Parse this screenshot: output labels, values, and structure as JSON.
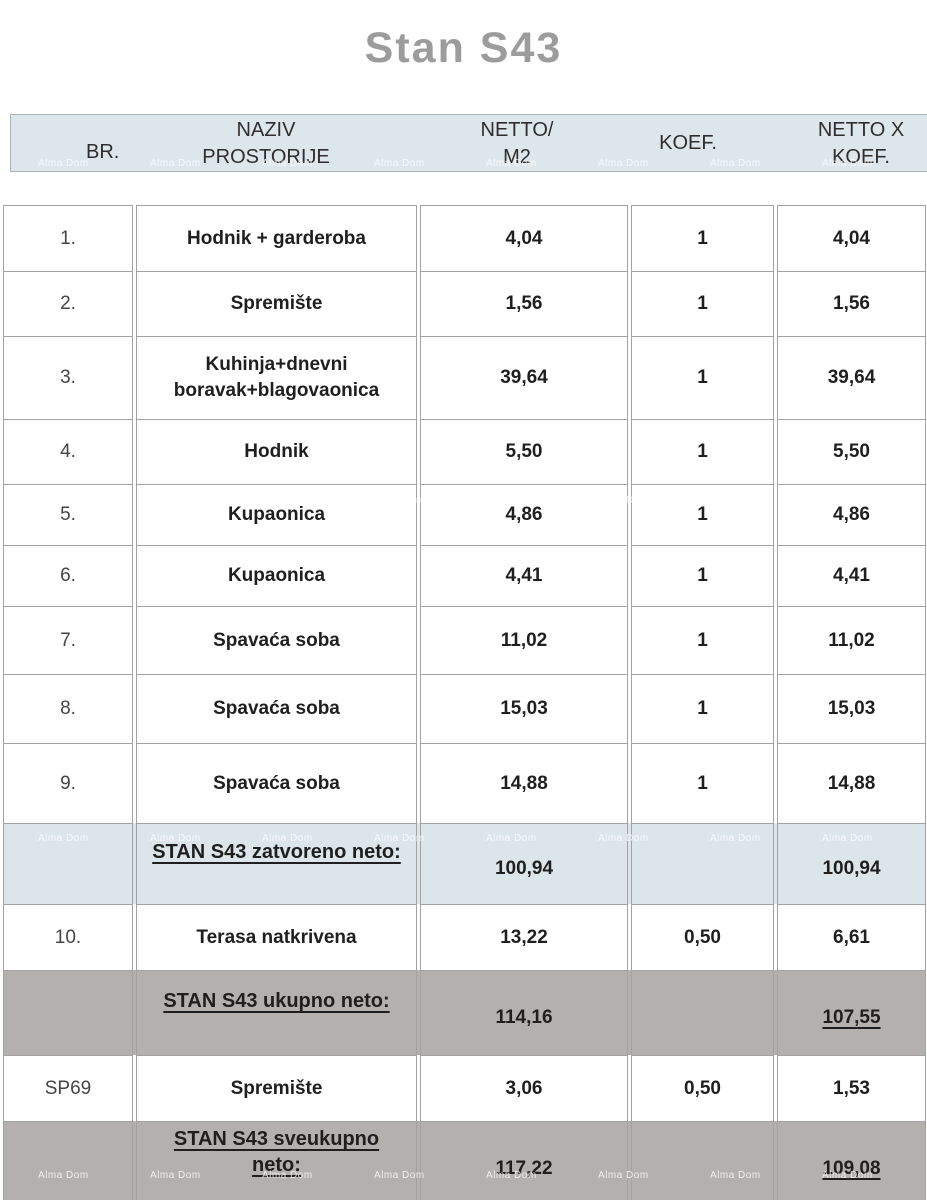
{
  "title": "Stan S43",
  "watermark": {
    "text": "Alma Dom"
  },
  "header": {
    "br": "BR.",
    "name_line1": "NAZIV",
    "name_line2": "PROSTORIJE",
    "netto_line1": "NETTO/",
    "netto_line2": "M2",
    "koef": "KOEF.",
    "nettokoef_line1": "NETTO X",
    "nettokoef_line2": "KOEF."
  },
  "rows": [
    {
      "br": "1.",
      "name": "Hodnik + garderoba",
      "netto": "4,04",
      "koef": "1",
      "total": "4,04"
    },
    {
      "br": "2.",
      "name": "Spremište",
      "netto": "1,56",
      "koef": "1",
      "total": "1,56"
    },
    {
      "br": "3.",
      "name": "Kuhinja+dnevni boravak+blagovaonica",
      "netto": "39,64",
      "koef": "1",
      "total": "39,64"
    },
    {
      "br": "4.",
      "name": "Hodnik",
      "netto": "5,50",
      "koef": "1",
      "total": "5,50"
    },
    {
      "br": "5.",
      "name": "Kupaonica",
      "netto": "4,86",
      "koef": "1",
      "total": "4,86"
    },
    {
      "br": "6.",
      "name": "Kupaonica",
      "netto": "4,41",
      "koef": "1",
      "total": "4,41"
    },
    {
      "br": "7.",
      "name": "Spavaća soba",
      "netto": "11,02",
      "koef": "1",
      "total": "11,02"
    },
    {
      "br": "8.",
      "name": "Spavaća soba",
      "netto": "15,03",
      "koef": "1",
      "total": "15,03"
    },
    {
      "br": "9.",
      "name": "Spavaća soba",
      "netto": "14,88",
      "koef": "1",
      "total": "14,88"
    },
    {
      "br": "",
      "name": "STAN S43 zatvoreno neto:",
      "netto": "100,94",
      "koef": "",
      "total": "100,94"
    },
    {
      "br": "10.",
      "name": "Terasa natkrivena",
      "netto": "13,22",
      "koef": "0,50",
      "total": "6,61"
    },
    {
      "br": "",
      "name": "STAN S43 ukupno neto:",
      "netto": "114,16",
      "koef": "",
      "total": "107,55"
    },
    {
      "br": "SP69",
      "name": "Spremište",
      "netto": "3,06",
      "koef": "0,50",
      "total": "1,53"
    },
    {
      "br": "",
      "name": "STAN S43 sveukupno neto:",
      "netto": "117,22",
      "koef": "",
      "total": "109,08"
    }
  ],
  "colors": {
    "header_bg": "#dde7eb",
    "summary_light_bg": "#dce5e9",
    "summary_dark_bg": "#b4b0ad",
    "title_gray": "#9c9c9c",
    "border_gray": "#a2a2a2"
  }
}
